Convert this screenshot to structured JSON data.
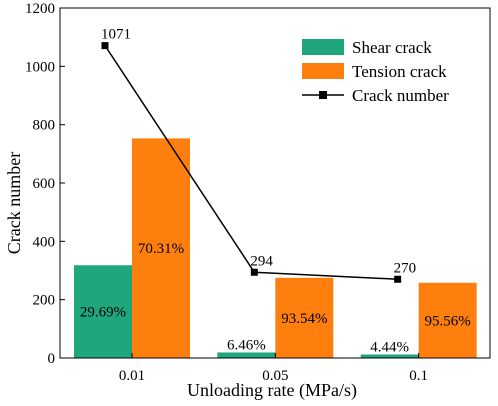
{
  "chart_data": {
    "type": "bar",
    "xlabel": "Unloading rate (MPa/s)",
    "ylabel": "Crack number",
    "ylim": [
      0,
      1200
    ],
    "yticks": [
      0,
      200,
      400,
      600,
      800,
      1000,
      1200
    ],
    "categories": [
      "0.01",
      "0.05",
      "0.1"
    ],
    "series": [
      {
        "name": "Shear crack",
        "kind": "bar",
        "color": "#20a67c",
        "values": [
          318,
          19,
          12
        ],
        "labels": [
          "29.69%",
          "6.46%",
          "4.44%"
        ]
      },
      {
        "name": "Tension crack",
        "kind": "bar",
        "color": "#ff7f0e",
        "values": [
          753,
          275,
          258
        ],
        "labels": [
          "70.31%",
          "93.54%",
          "95.56%"
        ]
      },
      {
        "name": "Crack number",
        "kind": "line",
        "color": "#000000",
        "values": [
          1071,
          294,
          270
        ],
        "labels": [
          "1071",
          "294",
          "270"
        ]
      }
    ],
    "legend_position": "top-right",
    "grid": false
  }
}
